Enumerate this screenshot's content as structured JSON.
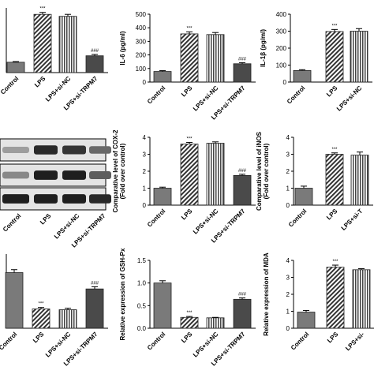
{
  "chart_data": [
    {
      "id": "p1",
      "type": "bar",
      "ylabel": "",
      "ylim": [
        0,
        1
      ],
      "categories": [
        "Control",
        "LPS",
        "LPS+si-NC",
        "LPS+si-TRPM7"
      ],
      "values": [
        0.16,
        0.9,
        0.87,
        0.26
      ],
      "errors": [
        0.01,
        0.03,
        0.03,
        0.02
      ],
      "yticks": [],
      "annotations": [
        "",
        "***",
        "",
        "###"
      ]
    },
    {
      "id": "p2",
      "type": "bar",
      "ylabel": "IL-6 (pg/ml)",
      "ylim": [
        0,
        500
      ],
      "categories": [
        "Control",
        "LPS",
        "LPS+si-NC",
        "LPS+si-TRPM7"
      ],
      "values": [
        78,
        355,
        350,
        135
      ],
      "errors": [
        6,
        15,
        15,
        8
      ],
      "yticks": [
        "0",
        "100",
        "200",
        "300",
        "400",
        "500"
      ],
      "annotations": [
        "",
        "***",
        "",
        "###"
      ]
    },
    {
      "id": "p3",
      "type": "bar",
      "ylabel": "IL-1β (pg/ml)",
      "ylim": [
        0,
        400
      ],
      "categories": [
        "Control",
        "LPS",
        "LPS+si-NC"
      ],
      "values": [
        68,
        298,
        300
      ],
      "errors": [
        5,
        12,
        15
      ],
      "yticks": [
        "0",
        "100",
        "200",
        "300",
        "400"
      ],
      "annotations": [
        "",
        "***",
        ""
      ]
    },
    {
      "id": "p5",
      "type": "bar",
      "ylabel": "Comparative level of COX-2\n(Fold over control)",
      "ylim": [
        0,
        4
      ],
      "categories": [
        "Control",
        "LPS",
        "LPS+si-NC",
        "LPS+si-TRPM7"
      ],
      "values": [
        1.0,
        3.6,
        3.65,
        1.75
      ],
      "errors": [
        0.06,
        0.1,
        0.08,
        0.07
      ],
      "yticks": [
        "0",
        "1",
        "2",
        "3",
        "4"
      ],
      "annotations": [
        "",
        "***",
        "",
        "###"
      ]
    },
    {
      "id": "p6",
      "type": "bar",
      "ylabel": "Comparative level of iNOS\n(Fold over control)",
      "ylim": [
        0,
        4
      ],
      "categories": [
        "Control",
        "LPS",
        "LPS+si-T"
      ],
      "values": [
        1.0,
        3.0,
        2.95
      ],
      "errors": [
        0.12,
        0.08,
        0.18
      ],
      "yticks": [
        "0",
        "1",
        "2",
        "3",
        "4"
      ],
      "annotations": [
        "",
        "***",
        ""
      ]
    },
    {
      "id": "p7",
      "type": "bar",
      "ylabel": "",
      "ylim": [
        0,
        1
      ],
      "categories": [
        "Control",
        "LPS",
        "LPS+si-NC",
        "LPS+si-TRPM7"
      ],
      "values": [
        0.75,
        0.26,
        0.25,
        0.53
      ],
      "errors": [
        0.04,
        0.02,
        0.02,
        0.03
      ],
      "yticks": [],
      "annotations": [
        "",
        "***",
        "",
        "###"
      ]
    },
    {
      "id": "p8",
      "type": "bar",
      "ylabel": "Relative expression of GSH-Px",
      "ylim": [
        0,
        1.5
      ],
      "categories": [
        "Control",
        "LPS",
        "LPS+si-NC",
        "LPS+si-TRPM7"
      ],
      "values": [
        1.0,
        0.24,
        0.23,
        0.64
      ],
      "errors": [
        0.05,
        0.02,
        0.01,
        0.03
      ],
      "yticks": [
        "0.0",
        "0.5",
        "1.0",
        "1.5"
      ],
      "annotations": [
        "",
        "***",
        "",
        "###"
      ]
    },
    {
      "id": "p9",
      "type": "bar",
      "ylabel": "Relative expression of MDA",
      "ylim": [
        0,
        4
      ],
      "categories": [
        "Control",
        "LPS",
        "LPS+si-"
      ],
      "values": [
        0.95,
        3.6,
        3.45
      ],
      "errors": [
        0.1,
        0.12,
        0.06
      ],
      "yticks": [
        "0",
        "1",
        "2",
        "3",
        "4"
      ],
      "annotations": [
        "",
        "***",
        ""
      ]
    }
  ],
  "western_blot": {
    "categories": [
      "Control",
      "LPS",
      "LPS+si-NC",
      "LPS+si-TRPM7"
    ],
    "band_intensity_rows": [
      [
        0.35,
        0.9,
        0.85,
        0.6
      ],
      [
        0.45,
        0.95,
        0.95,
        0.65
      ],
      [
        0.95,
        0.95,
        0.95,
        0.9
      ]
    ]
  },
  "colors": {
    "control": "#7a7a7a",
    "lps": "#d4d4d4",
    "si_nc": "#e8e8e8",
    "si_trpm7": "#4a4a4a",
    "axis": "#000000"
  }
}
